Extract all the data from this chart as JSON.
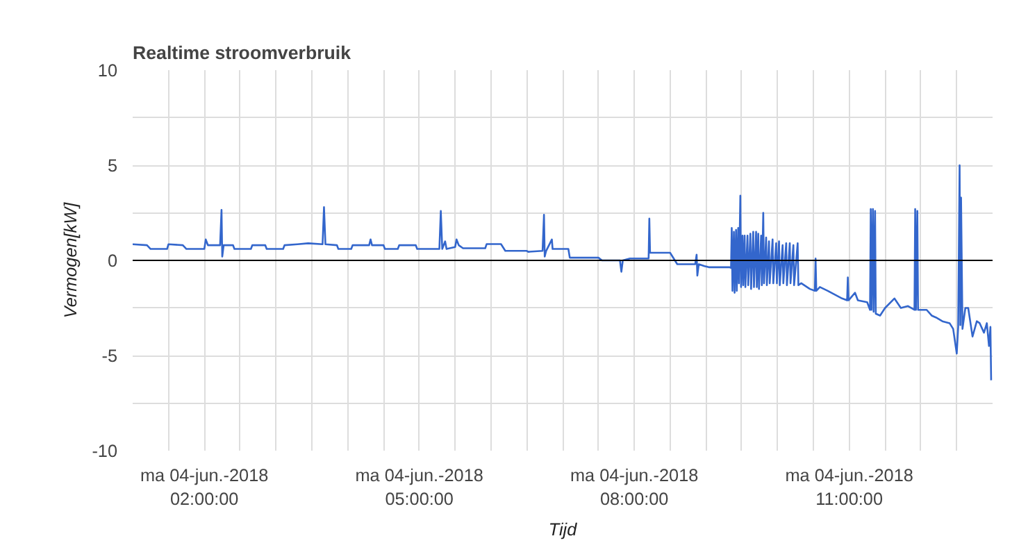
{
  "chart_data": {
    "type": "line",
    "title": "Realtime stroomverbruik",
    "xlabel": "Tijd",
    "ylabel": "Vermogen[kW]",
    "xlim": [
      "2018-06-04T01:00",
      "2018-06-04T13:00"
    ],
    "ylim": [
      -10,
      10
    ],
    "xticks": [
      {
        "value": "2018-06-04T01:30",
        "label": null
      },
      {
        "value": "2018-06-04T02:00",
        "label": "ma 04-jun.-2018\n02:00:00"
      },
      {
        "value": "2018-06-04T02:30",
        "label": null
      },
      {
        "value": "2018-06-04T03:00",
        "label": null
      },
      {
        "value": "2018-06-04T03:30",
        "label": null
      },
      {
        "value": "2018-06-04T04:00",
        "label": null
      },
      {
        "value": "2018-06-04T04:30",
        "label": null
      },
      {
        "value": "2018-06-04T05:00",
        "label": "ma 04-jun.-2018\n05:00:00"
      },
      {
        "value": "2018-06-04T05:30",
        "label": null
      },
      {
        "value": "2018-06-04T06:00",
        "label": null
      },
      {
        "value": "2018-06-04T06:30",
        "label": null
      },
      {
        "value": "2018-06-04T07:00",
        "label": null
      },
      {
        "value": "2018-06-04T07:30",
        "label": null
      },
      {
        "value": "2018-06-04T08:00",
        "label": "ma 04-jun.-2018\n08:00:00"
      },
      {
        "value": "2018-06-04T08:30",
        "label": null
      },
      {
        "value": "2018-06-04T09:00",
        "label": null
      },
      {
        "value": "2018-06-04T09:30",
        "label": null
      },
      {
        "value": "2018-06-04T10:00",
        "label": null
      },
      {
        "value": "2018-06-04T10:30",
        "label": null
      },
      {
        "value": "2018-06-04T11:00",
        "label": "ma 04-jun.-2018\n11:00:00"
      },
      {
        "value": "2018-06-04T11:30",
        "label": null
      },
      {
        "value": "2018-06-04T12:00",
        "label": null
      },
      {
        "value": "2018-06-04T12:30",
        "label": null
      }
    ],
    "yticks": [
      -10,
      {
        "value": -7.5,
        "label": null
      },
      -5,
      {
        "value": -2.5,
        "label": null
      },
      0,
      {
        "value": 2.5,
        "label": null
      },
      5,
      {
        "value": 7.5,
        "label": null
      },
      10
    ],
    "grid": true,
    "marker": "none",
    "line_style": "solid",
    "ref_lines": [
      {
        "axis": "y",
        "value": 0,
        "color": "#000000"
      }
    ],
    "series": [
      {
        "color": "#3366cc",
        "x": [
          "2018-06-04T01:00:00",
          "2018-06-04T01:12:00",
          "2018-06-04T01:15:00",
          "2018-06-04T01:28:48",
          "2018-06-04T01:30:00",
          "2018-06-04T01:42:00",
          "2018-06-04T01:45:00",
          "2018-06-04T02:00:00",
          "2018-06-04T02:01:12",
          "2018-06-04T02:03:00",
          "2018-06-04T02:13:12",
          "2018-06-04T02:14:24",
          "2018-06-04T02:15:00",
          "2018-06-04T02:16:12",
          "2018-06-04T02:24:00",
          "2018-06-04T02:25:12",
          "2018-06-04T02:39:00",
          "2018-06-04T02:40:12",
          "2018-06-04T02:51:00",
          "2018-06-04T02:52:12",
          "2018-06-04T03:06:00",
          "2018-06-04T03:07:12",
          "2018-06-04T03:18:00",
          "2018-06-04T03:27:00",
          "2018-06-04T03:39:00",
          "2018-06-04T03:40:12",
          "2018-06-04T03:41:24",
          "2018-06-04T03:51:00",
          "2018-06-04T03:52:12",
          "2018-06-04T04:03:00",
          "2018-06-04T04:04:12",
          "2018-06-04T04:18:00",
          "2018-06-04T04:19:12",
          "2018-06-04T04:20:24",
          "2018-06-04T04:30:00",
          "2018-06-04T04:31:12",
          "2018-06-04T04:42:00",
          "2018-06-04T04:43:12",
          "2018-06-04T04:57:00",
          "2018-06-04T04:58:12",
          "2018-06-04T05:16:48",
          "2018-06-04T05:18:00",
          "2018-06-04T05:19:12",
          "2018-06-04T05:21:36",
          "2018-06-04T05:22:48",
          "2018-06-04T05:30:00",
          "2018-06-04T05:31:12",
          "2018-06-04T05:33:00",
          "2018-06-04T05:36:36",
          "2018-06-04T05:55:12",
          "2018-06-04T05:56:24",
          "2018-06-04T06:08:24",
          "2018-06-04T06:12:00",
          "2018-06-04T06:30:00",
          "2018-06-04T06:31:12",
          "2018-06-04T06:43:12",
          "2018-06-04T06:44:24",
          "2018-06-04T06:45:00",
          "2018-06-04T06:46:12",
          "2018-06-04T06:51:00",
          "2018-06-04T06:51:36",
          "2018-06-04T07:04:48",
          "2018-06-04T07:06:00",
          "2018-06-04T07:30:00",
          "2018-06-04T07:33:00",
          "2018-06-04T07:48:00",
          "2018-06-04T07:49:12",
          "2018-06-04T07:50:24",
          "2018-06-04T07:56:24",
          "2018-06-04T08:07:48",
          "2018-06-04T08:12:00",
          "2018-06-04T08:12:36",
          "2018-06-04T08:13:12",
          "2018-06-04T08:30:00",
          "2018-06-04T08:36:00",
          "2018-06-04T08:51:00",
          "2018-06-04T08:52:12",
          "2018-06-04T08:52:48",
          "2018-06-04T08:54:00",
          "2018-06-04T08:58:48",
          "2018-06-04T09:02:24",
          "2018-06-04T09:19:48",
          "2018-06-04T09:21:00",
          "2018-06-04T09:21:36",
          "2018-06-04T09:22:12",
          "2018-06-04T09:23:24",
          "2018-06-04T09:24:00",
          "2018-06-04T09:25:12",
          "2018-06-04T09:25:48",
          "2018-06-04T09:27:00",
          "2018-06-04T09:27:36",
          "2018-06-04T09:28:48",
          "2018-06-04T09:29:24",
          "2018-06-04T09:30:36",
          "2018-06-04T09:31:12",
          "2018-06-04T09:32:24",
          "2018-06-04T09:33:00",
          "2018-06-04T09:34:48",
          "2018-06-04T09:35:24",
          "2018-06-04T09:37:12",
          "2018-06-04T09:37:48",
          "2018-06-04T09:39:36",
          "2018-06-04T09:40:12",
          "2018-06-04T09:42:00",
          "2018-06-04T09:42:36",
          "2018-06-04T09:43:48",
          "2018-06-04T09:44:24",
          "2018-06-04T09:46:12",
          "2018-06-04T09:46:48",
          "2018-06-04T09:48:00",
          "2018-06-04T09:48:36",
          "2018-06-04T09:50:24",
          "2018-06-04T09:51:00",
          "2018-06-04T09:52:48",
          "2018-06-04T09:53:24",
          "2018-06-04T09:55:48",
          "2018-06-04T09:56:24",
          "2018-06-04T09:58:48",
          "2018-06-04T09:59:24",
          "2018-06-04T10:01:12",
          "2018-06-04T10:01:48",
          "2018-06-04T10:04:12",
          "2018-06-04T10:04:48",
          "2018-06-04T10:07:12",
          "2018-06-04T10:07:48",
          "2018-06-04T10:10:12",
          "2018-06-04T10:10:48",
          "2018-06-04T10:13:12",
          "2018-06-04T10:13:48",
          "2018-06-04T10:16:48",
          "2018-06-04T10:17:24",
          "2018-06-04T10:19:48",
          "2018-06-04T10:27:00",
          "2018-06-04T10:31:12",
          "2018-06-04T10:31:48",
          "2018-06-04T10:32:24",
          "2018-06-04T10:35:24",
          "2018-06-04T10:42:00",
          "2018-06-04T10:48:00",
          "2018-06-04T10:54:00",
          "2018-06-04T10:58:12",
          "2018-06-04T10:58:48",
          "2018-06-04T10:59:24",
          "2018-06-04T11:04:48",
          "2018-06-04T11:07:12",
          "2018-06-04T11:15:00",
          "2018-06-04T11:17:24",
          "2018-06-04T11:18:00",
          "2018-06-04T11:18:36",
          "2018-06-04T11:19:48",
          "2018-06-04T11:20:24",
          "2018-06-04T11:21:36",
          "2018-06-04T11:22:12",
          "2018-06-04T11:25:48",
          "2018-06-04T11:30:00",
          "2018-06-04T11:37:48",
          "2018-06-04T11:43:12",
          "2018-06-04T11:49:12",
          "2018-06-04T11:54:36",
          "2018-06-04T11:55:12",
          "2018-06-04T11:55:48",
          "2018-06-04T11:57:00",
          "2018-06-04T11:57:36",
          "2018-06-04T12:04:48",
          "2018-06-04T12:09:00",
          "2018-06-04T12:12:36",
          "2018-06-04T12:18:00",
          "2018-06-04T12:24:00",
          "2018-06-04T12:27:00",
          "2018-06-04T12:30:00",
          "2018-06-04T12:31:12",
          "2018-06-04T12:32:24",
          "2018-06-04T12:33:00",
          "2018-06-04T12:33:36",
          "2018-06-04T12:34:48",
          "2018-06-04T12:37:12",
          "2018-06-04T12:39:36",
          "2018-06-04T12:43:12",
          "2018-06-04T12:46:48",
          "2018-06-04T12:49:12",
          "2018-06-04T12:52:48",
          "2018-06-04T12:55:12",
          "2018-06-04T12:57:00",
          "2018-06-04T12:58:12",
          "2018-06-04T12:58:48"
        ],
        "values": [
          0.85,
          0.8,
          0.6,
          0.6,
          0.85,
          0.8,
          0.6,
          0.6,
          1.1,
          0.8,
          0.8,
          2.65,
          0.2,
          0.8,
          0.8,
          0.6,
          0.6,
          0.8,
          0.8,
          0.6,
          0.6,
          0.8,
          0.85,
          0.9,
          0.85,
          2.8,
          0.85,
          0.8,
          0.6,
          0.6,
          0.8,
          0.8,
          1.1,
          0.8,
          0.8,
          0.6,
          0.6,
          0.8,
          0.8,
          0.6,
          0.6,
          2.6,
          0.6,
          1.0,
          0.6,
          0.7,
          1.1,
          0.8,
          0.64,
          0.64,
          0.86,
          0.86,
          0.5,
          0.5,
          0.45,
          0.5,
          2.4,
          0.2,
          0.5,
          1.1,
          0.6,
          0.6,
          0.14,
          0.14,
          0,
          0,
          -0.6,
          0,
          0.1,
          0.1,
          0.1,
          2.2,
          0.4,
          0.4,
          -0.2,
          -0.2,
          0.3,
          -0.8,
          -0.2,
          -0.3,
          -0.36,
          -0.36,
          -0.4,
          1.7,
          -1.6,
          1.5,
          -1.7,
          1.6,
          -1.6,
          1.7,
          -1.2,
          3.4,
          -1.4,
          1.3,
          -1.3,
          1.3,
          -1.4,
          1.3,
          -1.3,
          1.4,
          -1.5,
          1.5,
          -1.4,
          1.5,
          -1.4,
          1.4,
          -1.5,
          1.3,
          -1.3,
          2.5,
          -1.2,
          1.2,
          -1.3,
          1.0,
          -1.2,
          1.1,
          -1.2,
          0.9,
          -1.2,
          1.0,
          -1.3,
          0.8,
          -1.2,
          0.9,
          -1.3,
          0.9,
          -1.2,
          0.8,
          -1.3,
          0.9,
          -1.3,
          -1.2,
          -1.5,
          -1.6,
          0.1,
          -1.6,
          -1.4,
          -1.6,
          -1.8,
          -2.0,
          -2.1,
          -0.9,
          -2.1,
          -1.7,
          -2.1,
          -2.2,
          -2.6,
          2.7,
          -2.6,
          2.7,
          -2.7,
          2.6,
          -2.8,
          -2.9,
          -2.5,
          -2.0,
          -2.5,
          -2.4,
          -2.6,
          2.7,
          -2.6,
          2.6,
          -2.6,
          -2.6,
          -2.9,
          -3.0,
          -3.2,
          -3.3,
          -3.6,
          -4.9,
          -3.5,
          5.0,
          -3.4,
          3.3,
          -3.6,
          -2.5,
          -2.5,
          -4.0,
          -3.2,
          -3.3,
          -3.8,
          -3.3,
          -4.5,
          -3.5,
          -6.3
        ]
      }
    ]
  }
}
